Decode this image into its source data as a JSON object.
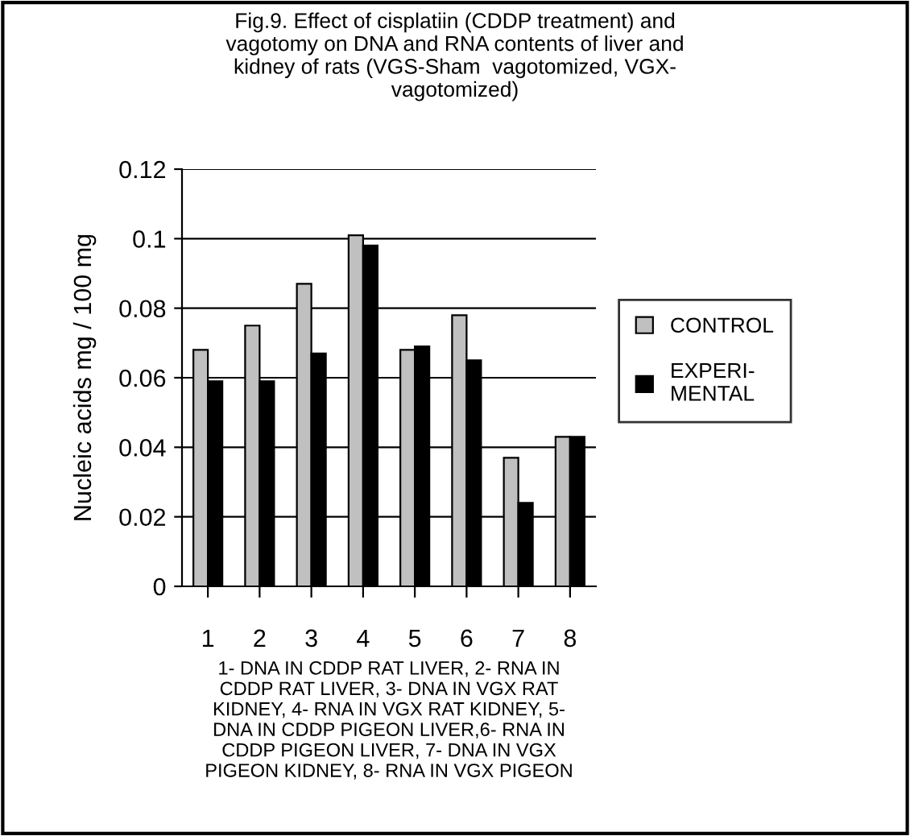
{
  "chart_data": {
    "type": "bar",
    "title": "Fig.9. Effect of cisplatiin (CDDP treatment) and\nvagotomy on DNA and RNA contents of liver and\nkidney of rats (VGS-Sham  vagotomized, VGX-\nvagotomized)",
    "ylabel": "Nucleic acids mg / 100 mg",
    "xlabel": "1- DNA IN CDDP RAT LIVER, 2- RNA IN\nCDDP RAT LIVER, 3- DNA IN VGX RAT\nKIDNEY, 4- RNA IN VGX RAT KIDNEY, 5-\nDNA IN CDDP PIGEON LIVER,6- RNA IN\nCDDP PIGEON LIVER, 7- DNA IN VGX\nPIGEON KIDNEY, 8- RNA IN VGX PIGEON",
    "categories": [
      "1",
      "2",
      "3",
      "4",
      "5",
      "6",
      "7",
      "8"
    ],
    "series": [
      {
        "name": "CONTROL",
        "color": "#c0c0c0",
        "values": [
          0.068,
          0.075,
          0.087,
          0.101,
          0.068,
          0.078,
          0.037,
          0.043
        ]
      },
      {
        "name": "EXPERI-\nMENTAL",
        "color": "#000000",
        "values": [
          0.059,
          0.059,
          0.067,
          0.098,
          0.069,
          0.065,
          0.024,
          0.043
        ]
      }
    ],
    "ylim": [
      0,
      0.12
    ],
    "yticks": [
      0,
      0.02,
      0.04,
      0.06,
      0.08,
      {
        "value": 0.1,
        "label": "0.1"
      },
      0.12
    ],
    "grid": "y",
    "legend": "right"
  }
}
